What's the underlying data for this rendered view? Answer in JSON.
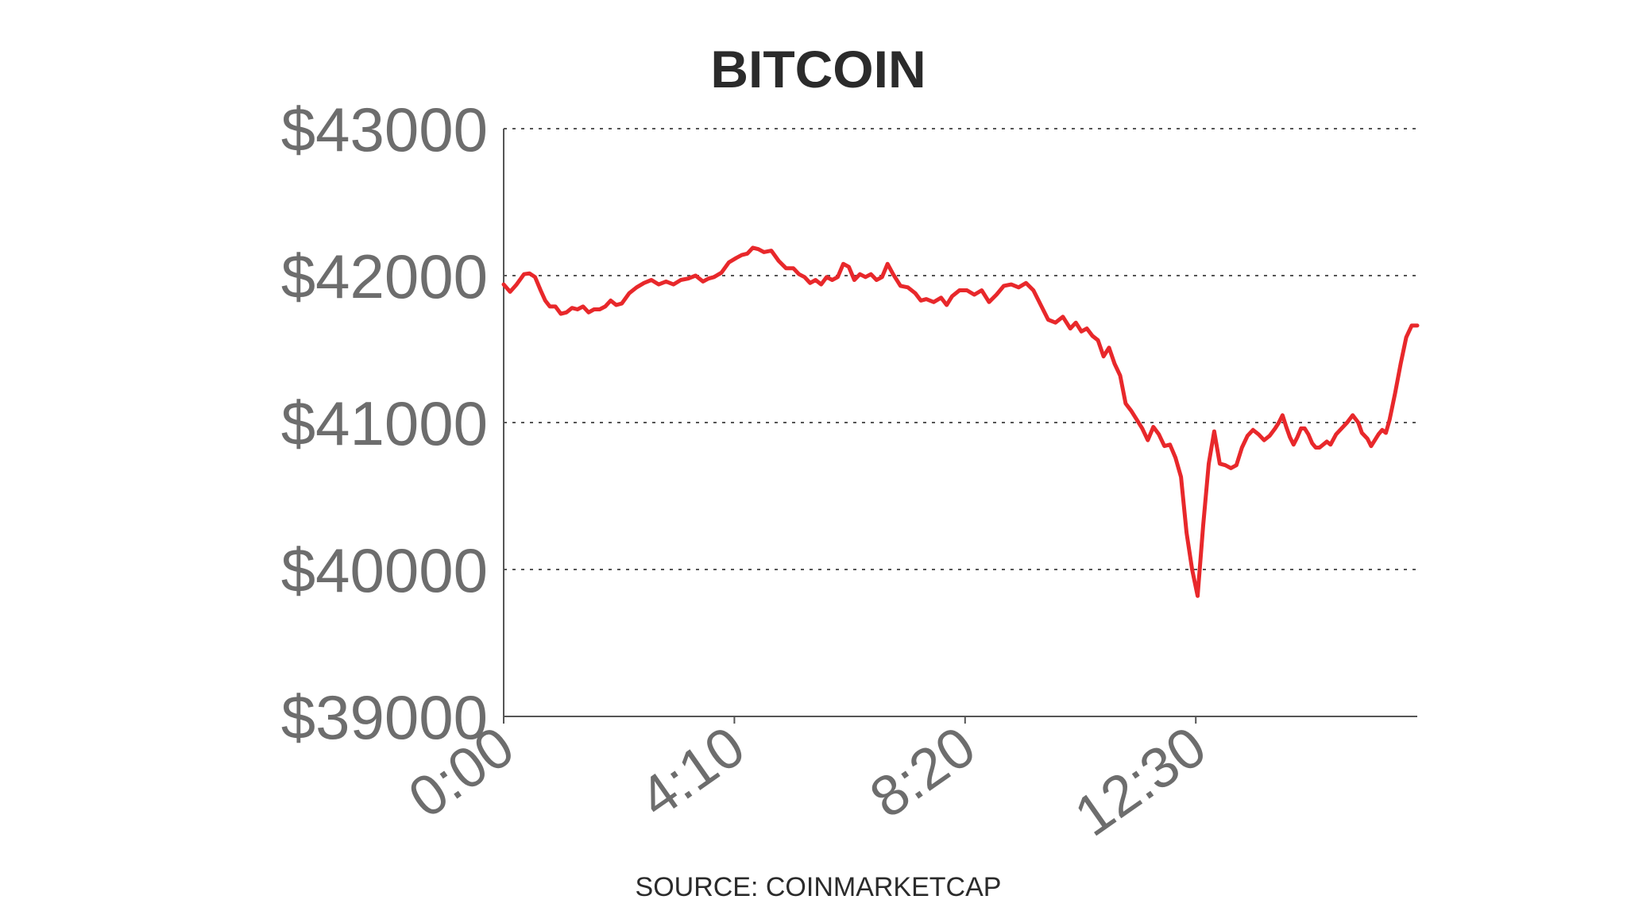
{
  "chart_data": {
    "type": "line",
    "title": "BITCOIN",
    "source": "SOURCE: COINMARKETCAP",
    "xlabel": "",
    "ylabel": "",
    "ylim": [
      39000,
      43000
    ],
    "y_ticks": [
      43000,
      42000,
      41000,
      40000,
      39000
    ],
    "y_tick_labels": [
      "$43000",
      "$42000",
      "$41000",
      "$40000",
      "$39000"
    ],
    "x_ticks": [
      0,
      250,
      500,
      750
    ],
    "x_tick_labels": [
      "0:00",
      "4:10",
      "8:20",
      "12:30"
    ],
    "xlim": [
      0,
      990
    ],
    "grid": "horizontal dotted",
    "series": [
      {
        "color": "#e8282b",
        "x": [
          0,
          7,
          14,
          22,
          28,
          34,
          40,
          45,
          50,
          56,
          62,
          68,
          74,
          80,
          86,
          92,
          98,
          104,
          110,
          116,
          122,
          128,
          136,
          144,
          152,
          160,
          168,
          176,
          184,
          192,
          200,
          208,
          216,
          222,
          228,
          236,
          244,
          252,
          258,
          264,
          270,
          276,
          282,
          290,
          298,
          306,
          314,
          320,
          326,
          332,
          338,
          344,
          350,
          356,
          362,
          368,
          374,
          380,
          386,
          392,
          398,
          404,
          410,
          416,
          422,
          430,
          438,
          446,
          452,
          458,
          466,
          474,
          480,
          486,
          494,
          502,
          510,
          518,
          526,
          534,
          542,
          550,
          558,
          566,
          574,
          582,
          590,
          598,
          606,
          614,
          620,
          626,
          632,
          638,
          644,
          650,
          656,
          662,
          668,
          674,
          680,
          686,
          692,
          698,
          704,
          710,
          716,
          722,
          728,
          734,
          740,
          746,
          752,
          758,
          764,
          770,
          776,
          782,
          788,
          794,
          800,
          806,
          812,
          818,
          824,
          830,
          836,
          840,
          844,
          848,
          852,
          856,
          860,
          864,
          868,
          872,
          876,
          880,
          884,
          888,
          892,
          896,
          902,
          908,
          914,
          920,
          926,
          930,
          936,
          940,
          944,
          948,
          952,
          956,
          960,
          966,
          972,
          978,
          984,
          990
        ],
        "values": [
          41940,
          41890,
          41940,
          42010,
          42015,
          41990,
          41900,
          41830,
          41790,
          41790,
          41740,
          41750,
          41780,
          41770,
          41790,
          41750,
          41770,
          41770,
          41790,
          41830,
          41800,
          41810,
          41880,
          41920,
          41950,
          41970,
          41940,
          41960,
          41940,
          41970,
          41980,
          42000,
          41960,
          41980,
          41990,
          42020,
          42090,
          42120,
          42140,
          42150,
          42190,
          42180,
          42160,
          42170,
          42100,
          42050,
          42050,
          42010,
          41990,
          41950,
          41970,
          41940,
          41990,
          41970,
          41990,
          42080,
          42060,
          41970,
          42010,
          41990,
          42010,
          41970,
          41990,
          42080,
          42010,
          41930,
          41920,
          41880,
          41830,
          41840,
          41820,
          41850,
          41800,
          41860,
          41900,
          41900,
          41870,
          41900,
          41820,
          41870,
          41930,
          41940,
          41920,
          41950,
          41900,
          41800,
          41700,
          41680,
          41720,
          41640,
          41680,
          41620,
          41640,
          41590,
          41560,
          41450,
          41510,
          41400,
          41320,
          41130,
          41080,
          41020,
          40960,
          40880,
          40970,
          40920,
          40840,
          40850,
          40760,
          40630,
          40250,
          40000,
          39820,
          40300,
          40720,
          40940,
          40720,
          40710,
          40690,
          40710,
          40830,
          40910,
          40950,
          40920,
          40880,
          40910,
          40960,
          41000,
          41050,
          40970,
          40900,
          40850,
          40900,
          40960,
          40960,
          40920,
          40860,
          40830,
          40830,
          40850,
          40870,
          40850,
          40920,
          40960,
          41000,
          41050,
          41000,
          40930,
          40890,
          40840,
          40880,
          40920,
          40950,
          40930,
          41020,
          41200,
          41400,
          41580,
          41660,
          41660
        ]
      }
    ]
  }
}
